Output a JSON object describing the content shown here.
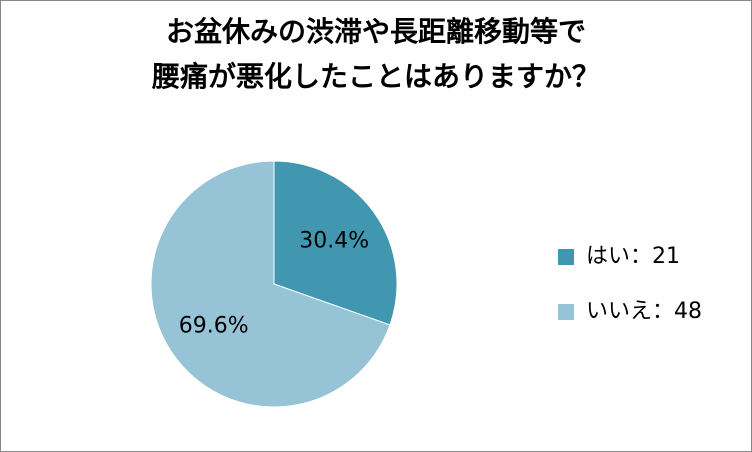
{
  "chart_data": {
    "type": "pie",
    "title": [
      "お盆休みの渋滞や長距離移動等で",
      "腰痛が悪化したことはありますか？"
    ],
    "categories": [
      "はい：21",
      "いいえ：48"
    ],
    "values": [
      30.4,
      69.6
    ],
    "value_labels": [
      "30.4%",
      "69.6%"
    ],
    "colors": [
      "#4197b0",
      "#96c3d6"
    ]
  }
}
